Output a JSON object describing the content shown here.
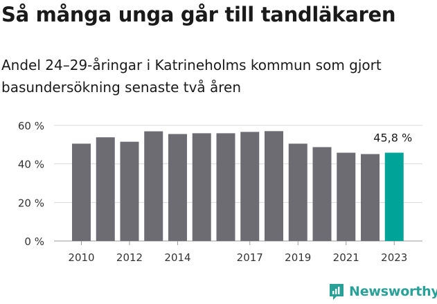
{
  "title": "Så många unga går till tandläkaren",
  "subtitle": "Andel 24–29-åringar i Katrineholms kommun som gjort basundersökning senaste två åren",
  "brand": {
    "name": "Newsworthy",
    "color": "#2aa198"
  },
  "chart_data": {
    "type": "bar",
    "categories": [
      "2010",
      "2011",
      "2012",
      "2013",
      "2014",
      "2015",
      "2016",
      "2017",
      "2018",
      "2019",
      "2020",
      "2021",
      "2022",
      "2023"
    ],
    "values": [
      50.5,
      53.8,
      51.5,
      56.9,
      55.5,
      55.9,
      55.9,
      56.6,
      57.0,
      50.5,
      48.7,
      45.8,
      45.1,
      45.8
    ],
    "x_tick_labels": [
      "2010",
      "2012",
      "2014",
      "2017",
      "2019",
      "2021",
      "2023"
    ],
    "y_ticks": [
      0,
      20,
      40,
      60
    ],
    "y_tick_labels": [
      "0 %",
      "20 %",
      "40 %",
      "60 %"
    ],
    "ylim": [
      0,
      60
    ],
    "annotation": {
      "category": "2023",
      "label": "45,8 %"
    },
    "highlight_category": "2023",
    "bar_color": "#6d6c72",
    "highlight_color": "#00a398",
    "grid": true,
    "xlabel": "",
    "ylabel": ""
  }
}
